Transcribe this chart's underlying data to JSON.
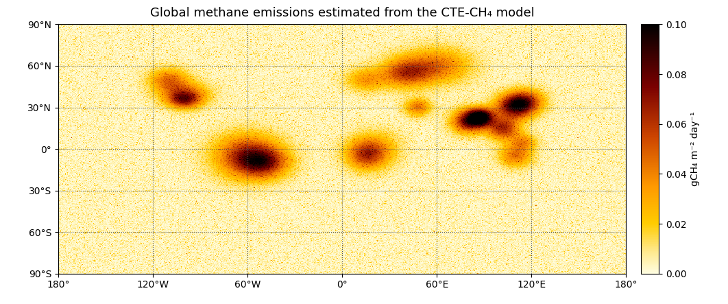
{
  "title": "Global methane emissions estimated from the CTE-CH₄ model",
  "cbar_label": "gCH₄ m⁻² day⁻¹",
  "vmin": 0.0,
  "vmax": 0.1,
  "cbar_ticks": [
    0.0,
    0.02,
    0.04,
    0.06,
    0.08,
    0.1
  ],
  "xlim": [
    -180,
    180
  ],
  "ylim": [
    -90,
    90
  ],
  "xticks": [
    -180,
    -120,
    -60,
    0,
    60,
    120,
    180
  ],
  "xtick_labels": [
    "180°",
    "120°W",
    "60°W",
    "0°",
    "60°E",
    "120°E",
    "180°"
  ],
  "yticks": [
    -90,
    -60,
    -30,
    0,
    30,
    60,
    90
  ],
  "ytick_labels": [
    "90°S",
    "60°S",
    "30°S",
    "0°",
    "30°N",
    "60°N",
    "90°N"
  ],
  "grid_color": "#555555",
  "grid_linestyle": "dotted",
  "background_color": "#ffffff",
  "colormap_colors": [
    "#fffde0",
    "#ffe680",
    "#ffcc00",
    "#ff9900",
    "#cc4400",
    "#7a0000",
    "#000000"
  ],
  "colormap_positions": [
    0.0,
    0.1,
    0.2,
    0.35,
    0.55,
    0.75,
    1.0
  ],
  "figsize": [
    10.62,
    4.43
  ],
  "dpi": 100,
  "title_fontsize": 13,
  "axis_fontsize": 10,
  "cbar_fontsize": 10,
  "land_color": "#d0d0d0",
  "ocean_color": "#ffffff"
}
